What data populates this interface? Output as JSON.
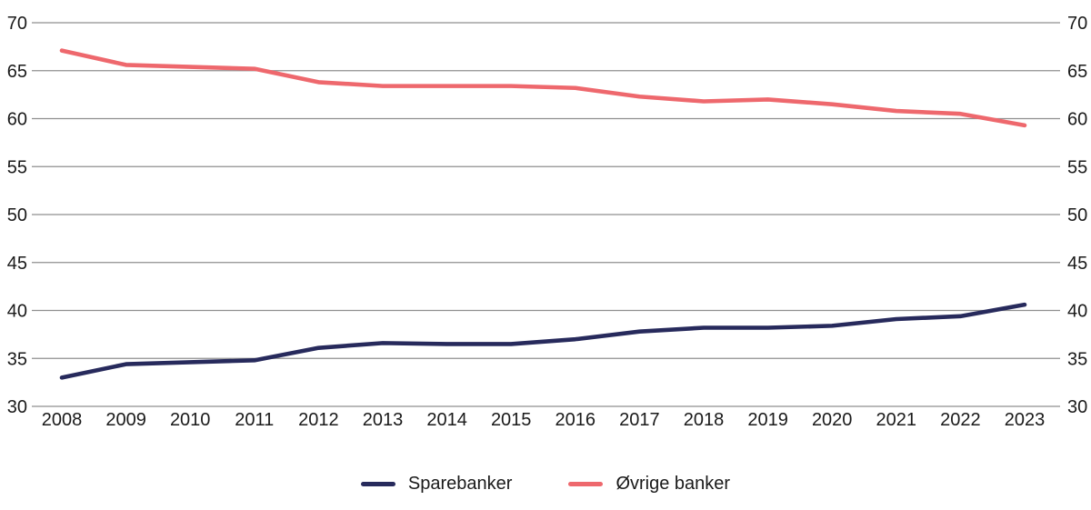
{
  "chart_data": {
    "type": "line",
    "title": "",
    "xlabel": "",
    "ylabel": "",
    "categories": [
      "2008",
      "2009",
      "2010",
      "2011",
      "2012",
      "2013",
      "2014",
      "2015",
      "2016",
      "2017",
      "2018",
      "2019",
      "2020",
      "2021",
      "2022",
      "2023"
    ],
    "series": [
      {
        "name": "Sparebanker",
        "color": "#272a5c",
        "values": [
          33.0,
          34.4,
          34.6,
          34.8,
          36.1,
          36.6,
          36.5,
          36.5,
          37.0,
          37.8,
          38.2,
          38.2,
          38.4,
          39.1,
          39.4,
          40.6
        ]
      },
      {
        "name": "Øvrige banker",
        "color": "#ee686d",
        "values": [
          67.1,
          65.6,
          65.4,
          65.2,
          63.8,
          63.4,
          63.4,
          63.4,
          63.2,
          62.3,
          61.8,
          62.0,
          61.5,
          60.8,
          60.5,
          59.3
        ]
      }
    ],
    "ylim": [
      30,
      70
    ],
    "yticks": [
      30,
      35,
      40,
      45,
      50,
      55,
      60,
      65,
      70
    ],
    "y_axis_sides": "both",
    "grid": "horizontal",
    "gridline_color": "#8f8f8f",
    "text_color": "#1a1a1a",
    "legend_position": "bottom"
  }
}
